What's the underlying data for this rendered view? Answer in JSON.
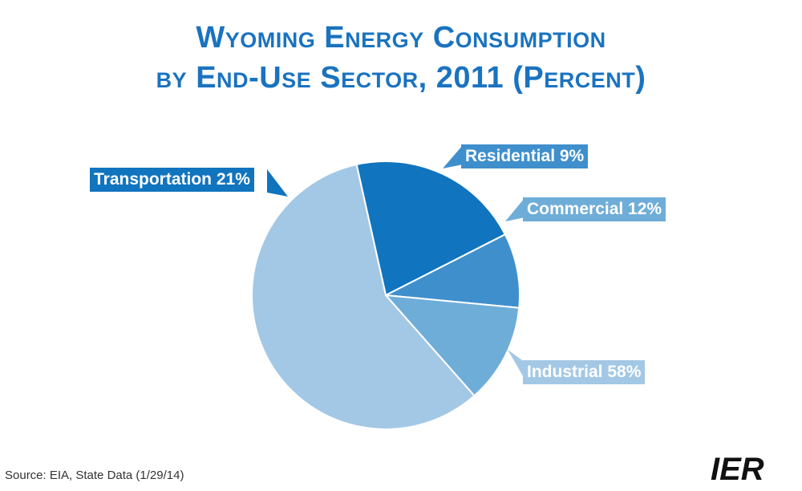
{
  "chart_data": {
    "type": "pie",
    "title_line1": "Wyoming Energy Consumption",
    "title_line2": "by End-Use Sector, 2011 (Percent)",
    "slices": [
      {
        "name": "Transportation",
        "label": "Transportation 21%",
        "value": 21,
        "color": "#1174be"
      },
      {
        "name": "Residential",
        "label": "Residential 9%",
        "value": 9,
        "color": "#3f8fcd"
      },
      {
        "name": "Commercial",
        "label": "Commercial 12%",
        "value": 12,
        "color": "#6fadd9"
      },
      {
        "name": "Industrial",
        "label": "Industrial 58%",
        "value": 58,
        "color": "#a3c8e5"
      }
    ]
  },
  "footer": {
    "source": "Source: EIA, State Data (1/29/14)",
    "logo_text": "IER"
  }
}
